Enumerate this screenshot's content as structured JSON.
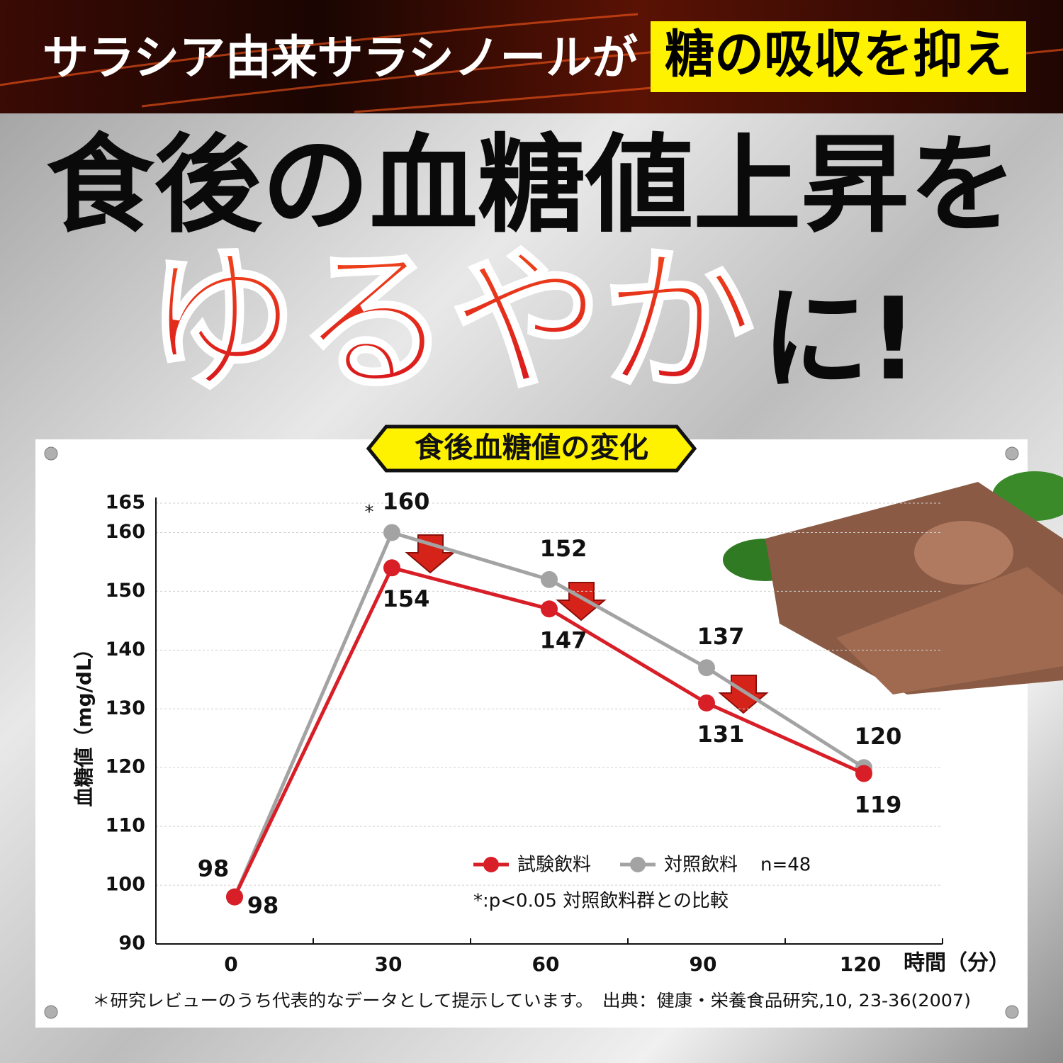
{
  "header": {
    "line1": "サラシア由来サラシノールが",
    "highlight": "糖の吸収を抑え",
    "line2": "食後の血糖値上昇を",
    "emphasis": "ゆるやか",
    "line3_end": "に!"
  },
  "chart_data": {
    "type": "line",
    "title": "食後血糖値の変化",
    "y_label": "血糖値（mg/dL）",
    "x_label": "時間（分）",
    "categories": [
      "0",
      "30",
      "60",
      "90",
      "120"
    ],
    "series": [
      {
        "name": "試験飲料",
        "color": "#d81e27",
        "values": [
          98,
          154,
          147,
          131,
          119
        ]
      },
      {
        "name": "対照飲料",
        "color": "#a3a3a3",
        "values": [
          98,
          160,
          152,
          137,
          120
        ]
      }
    ],
    "ylim": [
      90,
      165
    ],
    "yticks": [
      90,
      100,
      110,
      120,
      130,
      140,
      150,
      160,
      165
    ],
    "grid": true,
    "annotation": "*",
    "sample_size": "n=48",
    "significance_note": "*:p<0.05 対照飲料群との比較"
  },
  "footnote": "＊研究レビューのうち代表的なデータとして提示しています。　出典：健康・栄養食品研究,10, 23-36(2007)"
}
